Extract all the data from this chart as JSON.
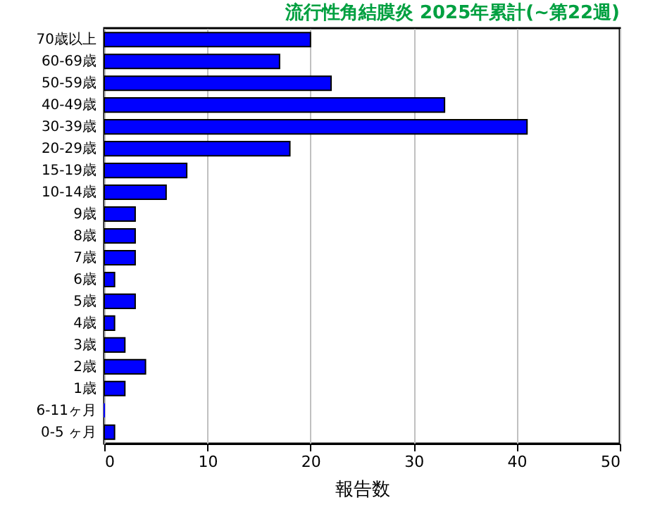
{
  "chart_data": {
    "type": "bar",
    "orientation": "horizontal",
    "title": "流行性角結膜炎 2025年累計(~第22週)",
    "xlabel": "報告数",
    "categories": [
      "70歳以上",
      "60-69歳",
      "50-59歳",
      "40-49歳",
      "30-39歳",
      "20-29歳",
      "15-19歳",
      "10-14歳",
      "9歳",
      "8歳",
      "7歳",
      "6歳",
      "5歳",
      "4歳",
      "3歳",
      "2歳",
      "1歳",
      "6-11ヶ月",
      "0-5 ヶ月"
    ],
    "values": [
      20,
      17,
      22,
      33,
      41,
      18,
      8,
      6,
      3,
      3,
      3,
      1,
      3,
      1,
      2,
      4,
      2,
      0,
      1
    ],
    "color": "#0000ff",
    "xlim": [
      0,
      50
    ],
    "xticks": [
      0,
      10,
      20,
      30,
      40,
      50
    ],
    "grid": "x"
  }
}
